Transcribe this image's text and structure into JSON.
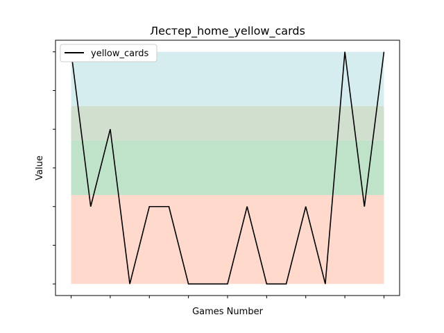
{
  "chart_data": {
    "type": "line",
    "title": "Лестер_home_yellow_cards",
    "xlabel": "Games Number",
    "ylabel": "Value",
    "legend": {
      "placement": "top-left",
      "entries": [
        "yellow_cards"
      ]
    },
    "grid": false,
    "ylim": [
      -0.3,
      6.3
    ],
    "xlim": [
      -0.8,
      16.8
    ],
    "x": [
      0,
      1,
      2,
      3,
      4,
      5,
      6,
      7,
      8,
      9,
      10,
      11,
      12,
      13,
      14,
      15,
      16
    ],
    "series": [
      {
        "name": "yellow_cards",
        "color": "#000000",
        "values": [
          6,
          2,
          4,
          0,
          2,
          2,
          0,
          0,
          0,
          2,
          0,
          0,
          2,
          0,
          6,
          2,
          6
        ]
      }
    ],
    "bands": [
      {
        "from": 0,
        "to": 2.3,
        "color": "#ffd9cc"
      },
      {
        "from": 2.3,
        "to": 3.7,
        "color": "#bfe3c9"
      },
      {
        "from": 3.7,
        "to": 4.6,
        "color": "#d1dfcf"
      },
      {
        "from": 4.6,
        "to": 6,
        "color": "#d6edf0"
      }
    ]
  }
}
